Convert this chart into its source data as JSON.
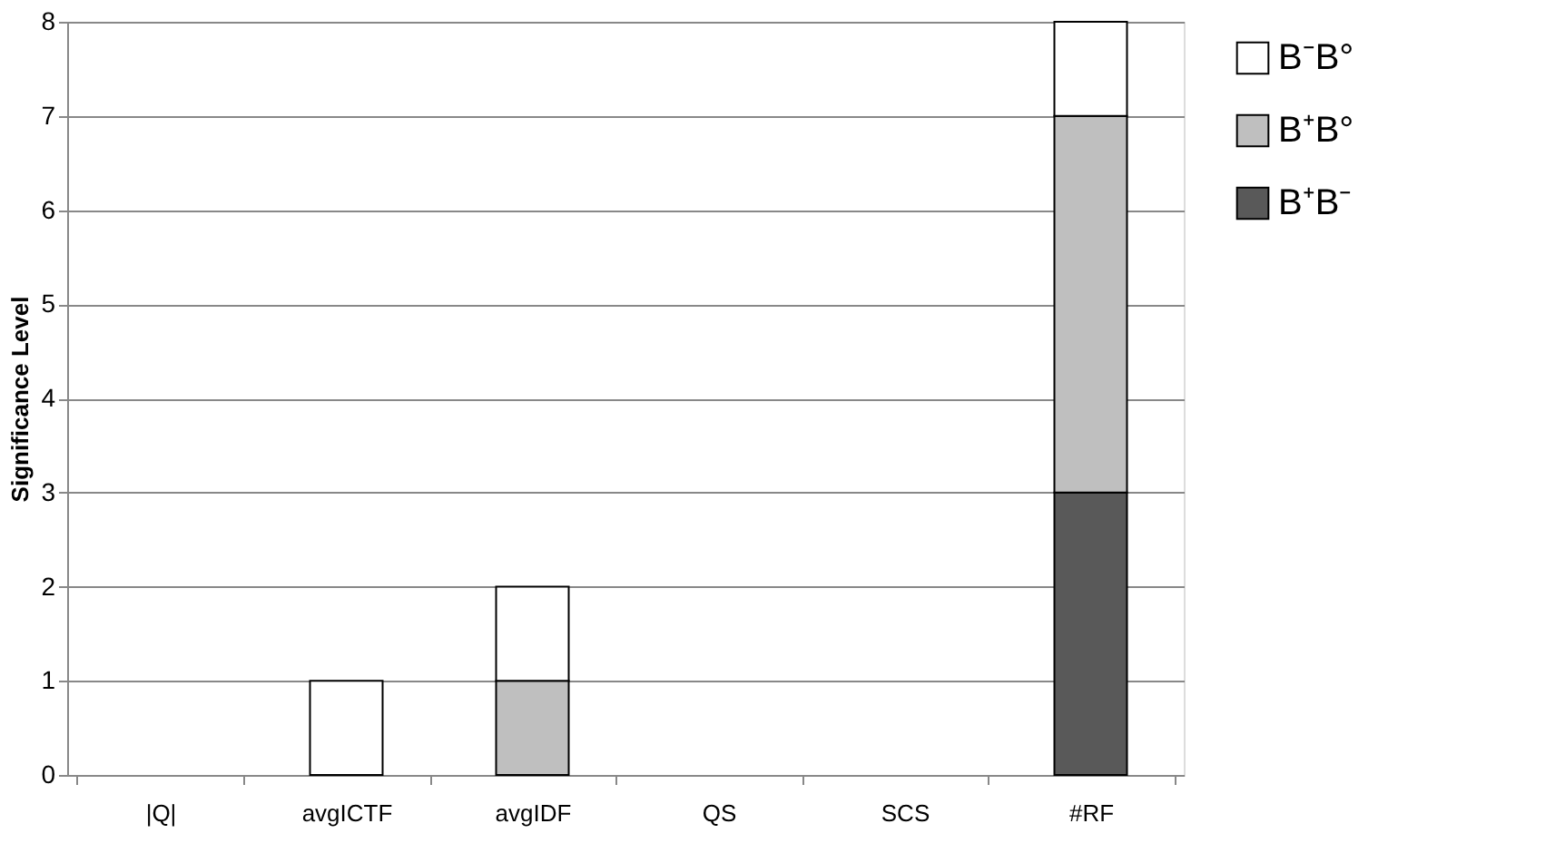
{
  "chart_data": {
    "type": "bar",
    "stacked": true,
    "ylabel": "Significance Level",
    "categories": [
      "|Q|",
      "avgICTF",
      "avgIDF",
      "QS",
      "SCS",
      "#RF"
    ],
    "series": [
      {
        "name": "B⁺B⁻",
        "color": "#595959",
        "values": [
          0,
          0,
          0,
          0,
          0,
          3
        ]
      },
      {
        "name": "B⁺B°",
        "color": "#bfbfbf",
        "values": [
          0,
          0,
          1,
          0,
          0,
          4
        ]
      },
      {
        "name": "B⁻B°",
        "color": "#ffffff",
        "values": [
          0,
          1,
          1,
          0,
          0,
          1
        ]
      }
    ],
    "ylim": [
      0,
      8
    ],
    "yticks": [
      0,
      1,
      2,
      3,
      4,
      5,
      6,
      7,
      8
    ],
    "grid": "y",
    "legend": "right"
  }
}
